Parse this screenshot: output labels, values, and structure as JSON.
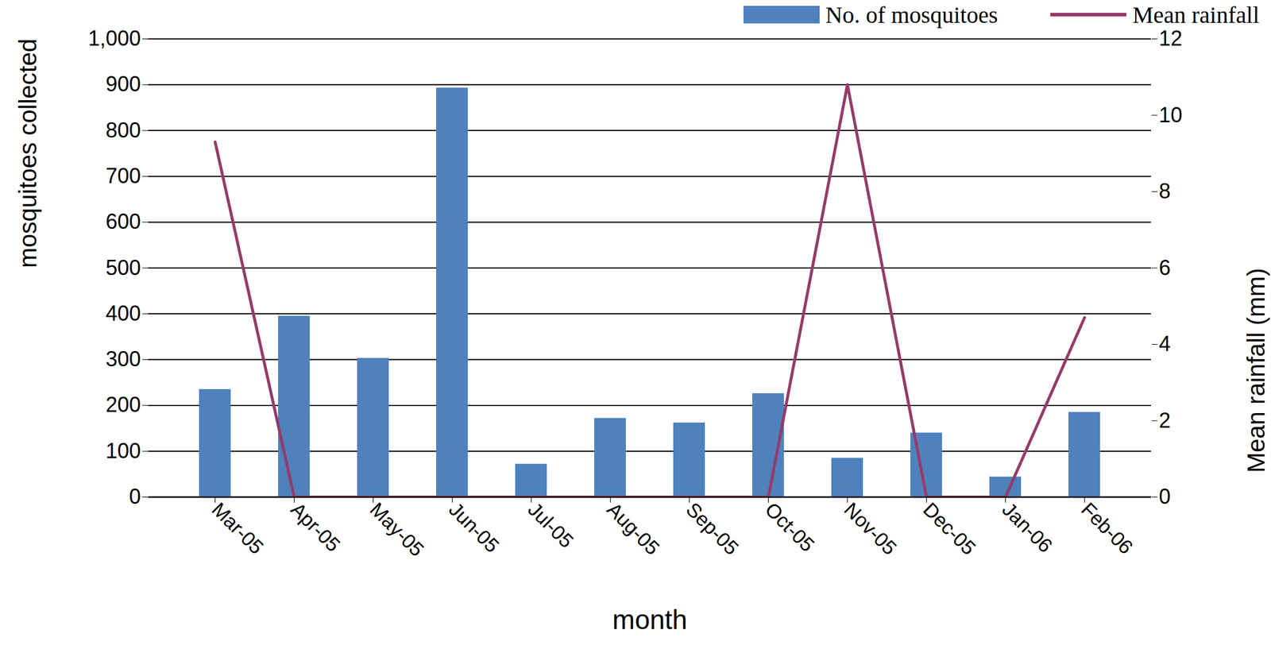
{
  "chart_data": {
    "type": "bar",
    "x_label": "month",
    "y_label": "mosquitoes collected",
    "y2_label": "Mean rainfall (mm)",
    "categories": [
      "Mar-05",
      "Apr-05",
      "May-05",
      "Jun-05",
      "Jul-05",
      "Aug-05",
      "Sep-05",
      "Oct-05",
      "Nov-05",
      "Dec-05",
      "Jan-06",
      "Feb-06"
    ],
    "series": [
      {
        "name": "No. of mosquitoes",
        "type": "bar",
        "axis": "y",
        "color": "#4f81bd",
        "values": [
          235,
          395,
          303,
          893,
          72,
          172,
          162,
          226,
          85,
          140,
          44,
          185
        ]
      },
      {
        "name": "Mean rainfall",
        "type": "line",
        "axis": "y2",
        "color": "#943b6b",
        "values": [
          9.3,
          0,
          0,
          0,
          0,
          0,
          0,
          0,
          10.8,
          0,
          0,
          4.7
        ]
      }
    ],
    "ylim": [
      0,
      1000
    ],
    "yticks": [
      0,
      100,
      200,
      300,
      400,
      500,
      600,
      700,
      800,
      900,
      1000
    ],
    "y2lim": [
      0,
      12
    ],
    "y2ticks": [
      0,
      2,
      4,
      6,
      8,
      10,
      12
    ],
    "grid": true,
    "legend": "top"
  }
}
